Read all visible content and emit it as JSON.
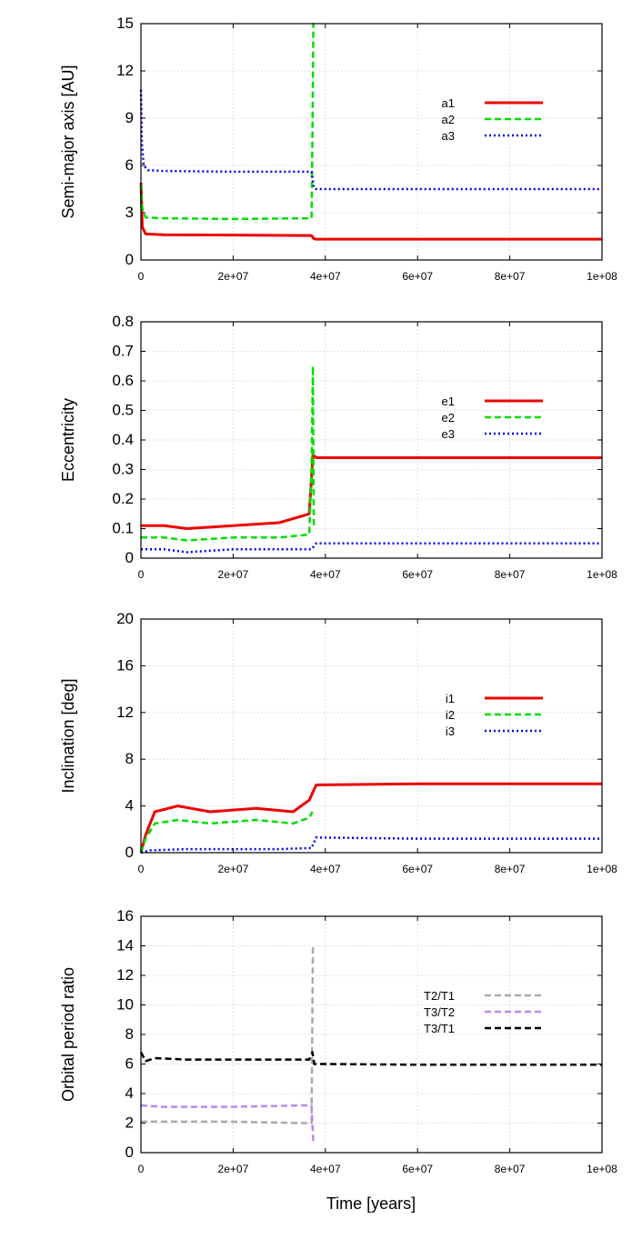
{
  "figure": {
    "xlabel": "Time [years]",
    "x_tick_labels": [
      "0",
      "2e+07",
      "4e+07",
      "6e+07",
      "8e+07",
      "1e+08"
    ]
  },
  "chart_data": [
    {
      "type": "line",
      "ylabel": "Semi-major axis [AU]",
      "xlim": [
        0,
        100000000
      ],
      "ylim": [
        0,
        15
      ],
      "y_tick_labels": [
        "0",
        "3",
        "6",
        "9",
        "12",
        "15"
      ],
      "grid": true,
      "legend_position": "top-right",
      "series": [
        {
          "name": "a1",
          "color": "#ee0000",
          "style": "solid",
          "x": [
            0,
            300000,
            1000000,
            5000000,
            20000000,
            37000000,
            37500000,
            38000000,
            60000000,
            100000000
          ],
          "y": [
            4.9,
            2.1,
            1.65,
            1.6,
            1.58,
            1.55,
            1.35,
            1.32,
            1.32,
            1.32
          ]
        },
        {
          "name": "a2",
          "color": "#00dd00",
          "style": "dashed",
          "x": [
            0,
            300000,
            1000000,
            5000000,
            20000000,
            37000000,
            37200000,
            37400000,
            37500000
          ],
          "y": [
            4.8,
            3.3,
            2.7,
            2.65,
            2.6,
            2.65,
            8.0,
            15.0,
            15.0
          ]
        },
        {
          "name": "a3",
          "color": "#0000ee",
          "style": "dotted",
          "x": [
            0,
            200000,
            600000,
            1500000,
            5000000,
            20000000,
            37000000,
            37500000,
            38000000,
            60000000,
            100000000
          ],
          "y": [
            10.8,
            7.5,
            6.0,
            5.7,
            5.65,
            5.6,
            5.6,
            4.6,
            4.5,
            4.5,
            4.5
          ]
        }
      ]
    },
    {
      "type": "line",
      "ylabel": "Eccentricity",
      "xlim": [
        0,
        100000000
      ],
      "ylim": [
        0,
        0.8
      ],
      "y_tick_labels": [
        "0",
        "0.1",
        "0.2",
        "0.3",
        "0.4",
        "0.5",
        "0.6",
        "0.7",
        "0.8"
      ],
      "grid": true,
      "legend_position": "top-right",
      "series": [
        {
          "name": "e1",
          "color": "#ee0000",
          "style": "solid",
          "x": [
            0,
            5000000,
            10000000,
            20000000,
            30000000,
            36500000,
            37300000,
            38000000,
            60000000,
            80000000,
            100000000
          ],
          "y": [
            0.11,
            0.11,
            0.1,
            0.11,
            0.12,
            0.15,
            0.35,
            0.34,
            0.34,
            0.34,
            0.34
          ]
        },
        {
          "name": "e2",
          "color": "#00dd00",
          "style": "dashed",
          "x": [
            0,
            5000000,
            10000000,
            20000000,
            30000000,
            36500000,
            37000000,
            37300000,
            37500000
          ],
          "y": [
            0.07,
            0.07,
            0.06,
            0.07,
            0.07,
            0.08,
            0.3,
            0.65,
            0.1
          ]
        },
        {
          "name": "e3",
          "color": "#0000ee",
          "style": "dotted",
          "x": [
            0,
            5000000,
            10000000,
            20000000,
            30000000,
            37000000,
            38000000,
            60000000,
            80000000,
            100000000
          ],
          "y": [
            0.03,
            0.03,
            0.02,
            0.03,
            0.03,
            0.03,
            0.05,
            0.05,
            0.05,
            0.05
          ]
        }
      ]
    },
    {
      "type": "line",
      "ylabel": "Inclination [deg]",
      "xlim": [
        0,
        100000000
      ],
      "ylim": [
        0,
        20
      ],
      "y_tick_labels": [
        "0",
        "4",
        "8",
        "12",
        "16",
        "20"
      ],
      "grid": true,
      "legend_position": "top-right",
      "series": [
        {
          "name": "i1",
          "color": "#ee0000",
          "style": "solid",
          "x": [
            0,
            1000000,
            3000000,
            8000000,
            15000000,
            25000000,
            33000000,
            36500000,
            38000000,
            60000000,
            80000000,
            100000000
          ],
          "y": [
            0,
            1.5,
            3.5,
            4.0,
            3.5,
            3.8,
            3.5,
            4.5,
            5.8,
            5.9,
            5.9,
            5.9
          ]
        },
        {
          "name": "i2",
          "color": "#00dd00",
          "style": "dashed",
          "x": [
            0,
            1000000,
            3000000,
            8000000,
            15000000,
            25000000,
            33000000,
            36500000,
            37200000
          ],
          "y": [
            0,
            1.2,
            2.5,
            2.8,
            2.5,
            2.8,
            2.5,
            3.0,
            3.5
          ]
        },
        {
          "name": "i3",
          "color": "#0000ee",
          "style": "dotted",
          "x": [
            0,
            2000000,
            10000000,
            20000000,
            30000000,
            37000000,
            38000000,
            60000000,
            80000000,
            100000000
          ],
          "y": [
            0,
            0.2,
            0.3,
            0.3,
            0.3,
            0.4,
            1.3,
            1.2,
            1.2,
            1.2
          ]
        }
      ]
    },
    {
      "type": "line",
      "ylabel": "Orbital period ratio",
      "xlabel": "Time [years]",
      "xlim": [
        0,
        100000000
      ],
      "ylim": [
        0,
        16
      ],
      "y_tick_labels": [
        "0",
        "2",
        "4",
        "6",
        "8",
        "10",
        "12",
        "14",
        "16"
      ],
      "grid": true,
      "legend_position": "top-right",
      "series": [
        {
          "name": "T2/T1",
          "color": "#aaaaaa",
          "style": "dashed",
          "x": [
            0,
            5000000,
            20000000,
            35000000,
            37000000,
            37300000,
            37500000
          ],
          "y": [
            2.1,
            2.1,
            2.1,
            2.0,
            2.0,
            14.0,
            14.0
          ]
        },
        {
          "name": "T3/T2",
          "color": "#bb88ee",
          "style": "dashed",
          "x": [
            0,
            5000000,
            20000000,
            35000000,
            37000000,
            37400000
          ],
          "y": [
            3.2,
            3.1,
            3.1,
            3.2,
            3.2,
            0.6
          ]
        },
        {
          "name": "T3/T1",
          "color": "#000000",
          "style": "dashed",
          "x": [
            0,
            1000000,
            3000000,
            10000000,
            20000000,
            30000000,
            36500000,
            37200000,
            37600000,
            40000000,
            60000000,
            80000000,
            100000000
          ],
          "y": [
            6.8,
            6.2,
            6.4,
            6.3,
            6.3,
            6.3,
            6.3,
            6.8,
            6.0,
            6.0,
            5.95,
            5.95,
            5.95
          ]
        }
      ]
    }
  ]
}
